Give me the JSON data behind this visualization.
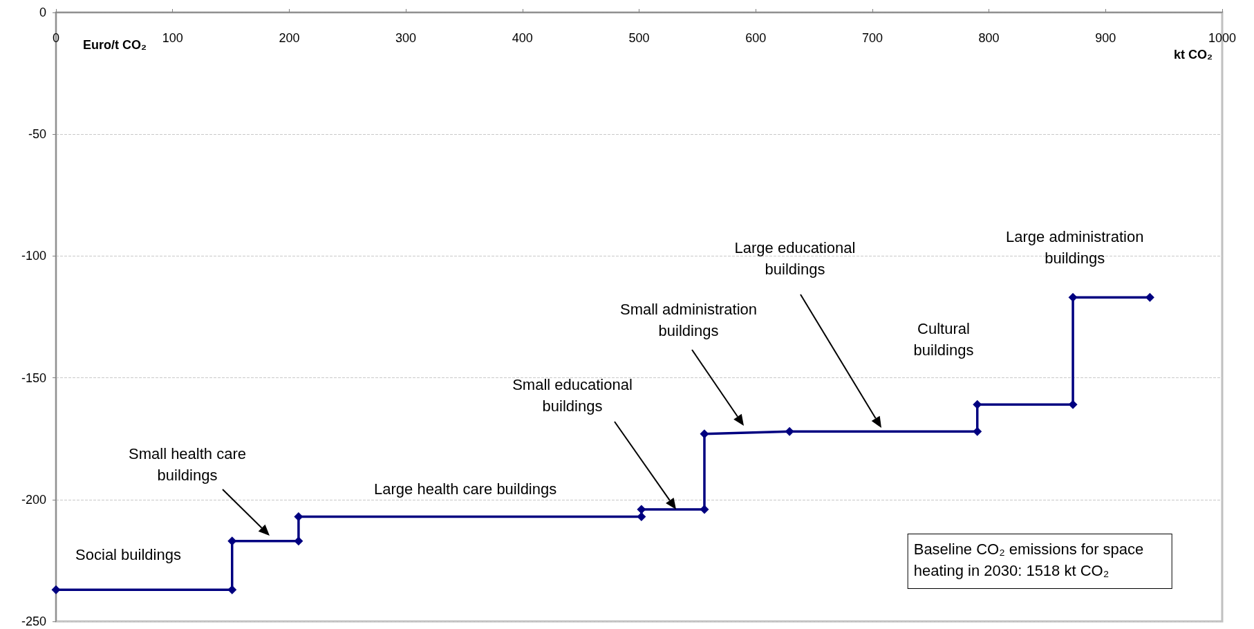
{
  "chart_data": {
    "type": "line",
    "xlabel": "kt CO₂",
    "ylabel": "Euro/t CO₂",
    "x": [
      0,
      151,
      151,
      208,
      208,
      502,
      502,
      556,
      556,
      629,
      790,
      790,
      872,
      872,
      938
    ],
    "values": [
      -237,
      -237,
      -217,
      -217,
      -207,
      -207,
      -204,
      -204,
      -173,
      -172,
      -172,
      -161,
      -161,
      -117,
      -117
    ],
    "color": "#000080",
    "marker": "diamond",
    "line_style": "solid",
    "xlim": [
      0,
      1000
    ],
    "xticks": [
      0,
      100,
      200,
      300,
      400,
      500,
      600,
      700,
      800,
      900,
      1000
    ],
    "ylim": [
      -250,
      0
    ],
    "yticks": [
      -250,
      -200,
      -150,
      -100,
      -50,
      0
    ],
    "grid": "y",
    "annotations": [
      {
        "text": "Social buildings",
        "x": 75,
        "y": -237
      },
      "Small health care\nbuildings",
      {
        "text": "Large health care buildings",
        "x": 351,
        "y": -207
      },
      "Small educational\nbuildings",
      "Small administration\nbuildings",
      "Large educational\nbuildings",
      "Cultural\nbuildings",
      {
        "text": "Large administration\nbuildings",
        "x": 905,
        "y": -117
      },
      "Baseline CO₂ emissions for space\nheating in 2030: 1518 kt CO₂"
    ]
  }
}
